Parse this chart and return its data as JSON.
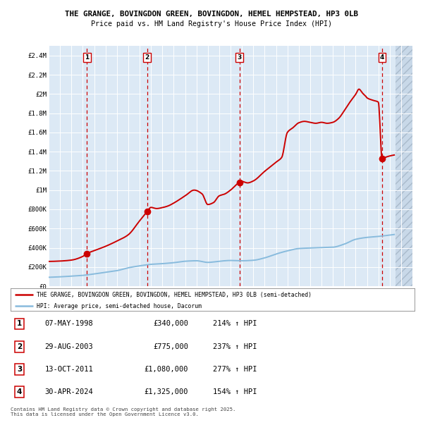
{
  "title_line1": "THE GRANGE, BOVINGDON GREEN, BOVINGDON, HEMEL HEMPSTEAD, HP3 0LB",
  "title_line2": "Price paid vs. HM Land Registry's House Price Index (HPI)",
  "bg_color": "#dce9f5",
  "red_line_color": "#cc0000",
  "blue_line_color": "#88bbdd",
  "sale_marker_color": "#cc0000",
  "ylim": [
    0,
    2500000
  ],
  "yticks": [
    0,
    200000,
    400000,
    600000,
    800000,
    1000000,
    1200000,
    1400000,
    1600000,
    1800000,
    2000000,
    2200000,
    2400000
  ],
  "ytick_labels": [
    "£0",
    "£200K",
    "£400K",
    "£600K",
    "£800K",
    "£1M",
    "£1.2M",
    "£1.4M",
    "£1.6M",
    "£1.8M",
    "£2M",
    "£2.2M",
    "£2.4M"
  ],
  "sales": [
    {
      "label": "1",
      "date_num": 1998.36,
      "price": 340000,
      "date_str": "07-MAY-1998",
      "pct": "214% ↑ HPI"
    },
    {
      "label": "2",
      "date_num": 2003.66,
      "price": 775000,
      "date_str": "29-AUG-2003",
      "pct": "237% ↑ HPI"
    },
    {
      "label": "3",
      "date_num": 2011.78,
      "price": 1080000,
      "date_str": "13-OCT-2011",
      "pct": "277% ↑ HPI"
    },
    {
      "label": "4",
      "date_num": 2024.33,
      "price": 1325000,
      "date_str": "30-APR-2024",
      "pct": "154% ↑ HPI"
    }
  ],
  "legend_red": "THE GRANGE, BOVINGDON GREEN, BOVINGDON, HEMEL HEMPSTEAD, HP3 0LB (semi-detached)",
  "legend_blue": "HPI: Average price, semi-detached house, Dacorum",
  "footnote": "Contains HM Land Registry data © Crown copyright and database right 2025.\nThis data is licensed under the Open Government Licence v3.0.",
  "xmin": 1995.0,
  "xmax": 2027.0,
  "hatch_start": 2025.5
}
